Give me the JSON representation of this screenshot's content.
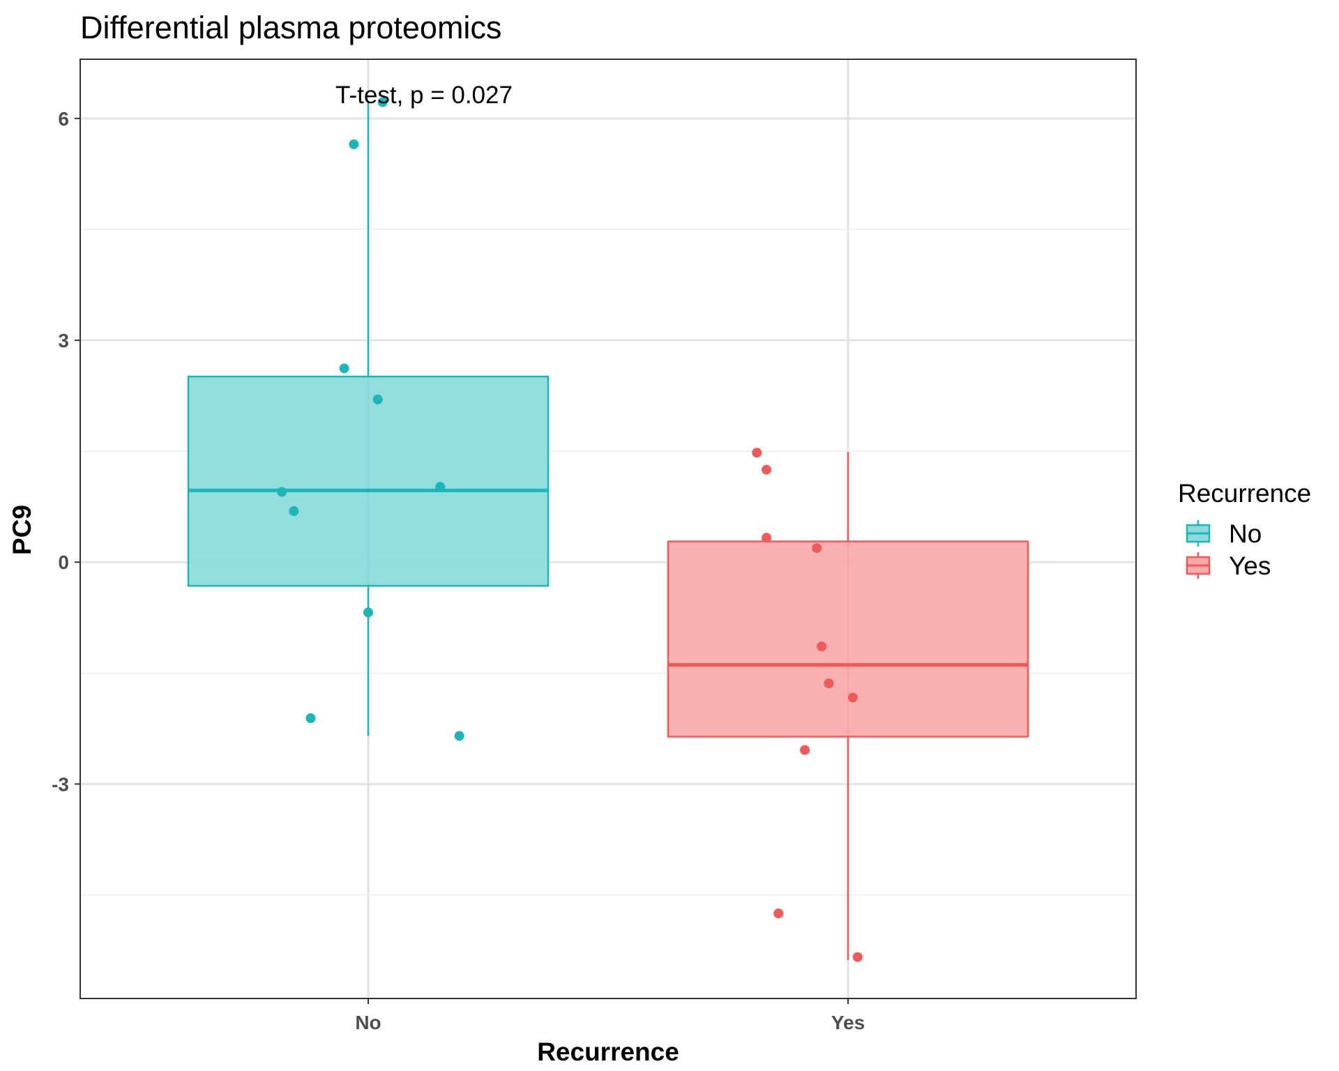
{
  "chart_data": {
    "type": "box",
    "title": "Differential plasma proteomics",
    "xlabel": "Recurrence",
    "ylabel": "PC9",
    "categories": [
      "No",
      "Yes"
    ],
    "yticks": [
      -3,
      0,
      3,
      6
    ],
    "ytick_labels": [
      "-3",
      "0",
      "3",
      "6"
    ],
    "ylim": [
      -5.9,
      6.8
    ],
    "annotation": "T-test, p = 0.027",
    "legend": {
      "title": "Recurrence",
      "position": "right",
      "entries": [
        {
          "label": "No",
          "color": "#1cb5b8"
        },
        {
          "label": "Yes",
          "color": "#ee5a5a"
        }
      ]
    },
    "grid": true,
    "series": [
      {
        "name": "No",
        "color": "#1cb5b8",
        "fill": "#8cdadb",
        "box": {
          "q1": -0.32,
          "median": 0.97,
          "q3": 2.51,
          "whisker_low": -2.35,
          "whisker_high": 6.22
        },
        "points": [
          {
            "x": 0.03,
            "y": 6.22
          },
          {
            "x": -0.03,
            "y": 5.65
          },
          {
            "x": -0.05,
            "y": 2.62
          },
          {
            "x": 0.02,
            "y": 2.2
          },
          {
            "x": -0.18,
            "y": 0.95
          },
          {
            "x": 0.15,
            "y": 1.02
          },
          {
            "x": -0.155,
            "y": 0.69
          },
          {
            "x": 0.0,
            "y": -0.68
          },
          {
            "x": -0.12,
            "y": -2.11
          },
          {
            "x": 0.19,
            "y": -2.35
          }
        ]
      },
      {
        "name": "Yes",
        "color": "#ee5a5a",
        "fill": "#f7aaaa",
        "box": {
          "q1": -2.36,
          "median": -1.39,
          "q3": 0.28,
          "whisker_low": -5.38,
          "whisker_high": 1.49
        },
        "points": [
          {
            "x": -0.19,
            "y": 1.48
          },
          {
            "x": -0.17,
            "y": 1.25
          },
          {
            "x": -0.17,
            "y": 0.33
          },
          {
            "x": -0.065,
            "y": 0.19
          },
          {
            "x": -0.055,
            "y": -1.14
          },
          {
            "x": -0.04,
            "y": -1.64
          },
          {
            "x": 0.01,
            "y": -1.83
          },
          {
            "x": -0.09,
            "y": -2.54
          },
          {
            "x": -0.145,
            "y": -4.75
          },
          {
            "x": 0.02,
            "y": -5.34
          }
        ]
      }
    ]
  }
}
